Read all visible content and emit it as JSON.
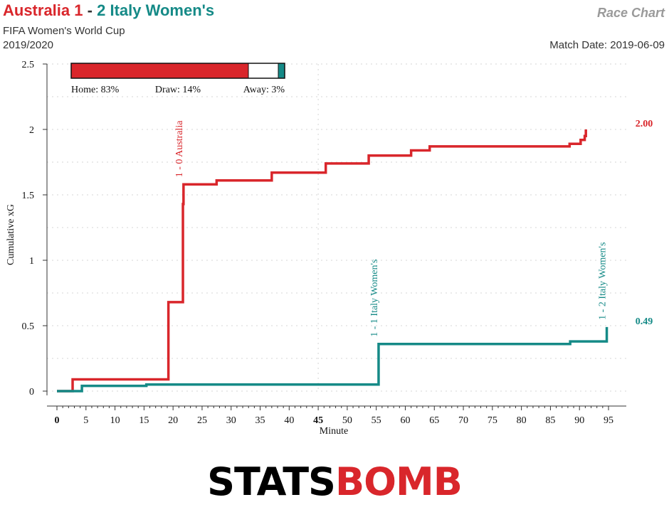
{
  "header": {
    "home_team": "Australia",
    "home_score": "1",
    "separator": "-",
    "away_score": "2",
    "away_team": "Italy Women's",
    "competition": "FIFA Women's World Cup",
    "season": "2019/2020",
    "chart_label": "Race Chart",
    "match_date_label": "Match Date: 2019-06-09"
  },
  "colors": {
    "home": "#d9262b",
    "away": "#158a87"
  },
  "probability": {
    "home": 83,
    "draw": 14,
    "away": 3,
    "home_label": "Home: 83%",
    "draw_label": "Draw: 14%",
    "away_label": "Away: 3%"
  },
  "chart_data": {
    "type": "line",
    "xlabel": "Minute",
    "ylabel": "Cumulative xG",
    "xlim": [
      0,
      95
    ],
    "ylim": [
      0,
      2.5
    ],
    "x_ticks": [
      0,
      5,
      10,
      15,
      20,
      25,
      30,
      35,
      40,
      45,
      50,
      55,
      60,
      65,
      70,
      75,
      80,
      85,
      90,
      95
    ],
    "x_tick_labels": [
      "0",
      "5",
      "10",
      "15",
      "20",
      "25",
      "30",
      "35",
      "40",
      "45",
      "50",
      "55",
      "60",
      "65",
      "70",
      "75",
      "80",
      "85",
      "90",
      "95"
    ],
    "y_ticks": [
      0,
      0.5,
      1,
      1.5,
      2,
      2.5
    ],
    "y_tick_labels": [
      "0",
      "0.5",
      "1",
      "1.5",
      "2",
      "2.5"
    ],
    "grid": true,
    "series": [
      {
        "name": "Australia",
        "final_label": "2.00",
        "steps": [
          [
            0,
            0
          ],
          [
            2.7,
            0.09
          ],
          [
            19.2,
            0.68
          ],
          [
            21.7,
            1.43
          ],
          [
            21.8,
            1.58
          ],
          [
            27.5,
            1.61
          ],
          [
            37,
            1.67
          ],
          [
            46.3,
            1.74
          ],
          [
            53.7,
            1.8
          ],
          [
            61,
            1.84
          ],
          [
            64.2,
            1.87
          ],
          [
            88.3,
            1.89
          ],
          [
            90.2,
            1.92
          ],
          [
            90.9,
            1.95
          ],
          [
            91.1,
            2.0
          ]
        ]
      },
      {
        "name": "Italy Women's",
        "final_label": "0.49",
        "steps": [
          [
            0,
            0
          ],
          [
            4.3,
            0.04
          ],
          [
            14.4,
            0.04
          ],
          [
            15.4,
            0.05
          ],
          [
            55.4,
            0.36
          ],
          [
            88.4,
            0.38
          ],
          [
            94.7,
            0.49
          ]
        ]
      }
    ],
    "annotations": [
      {
        "text": "1 - 0 Australia",
        "minute": 21.8,
        "xg": 1.58,
        "team": "home"
      },
      {
        "text": "1 - 1 Italy Women's",
        "minute": 55.4,
        "xg": 0.36,
        "team": "away"
      },
      {
        "text": "1 - 2 Italy Women's",
        "minute": 94.7,
        "xg": 0.49,
        "team": "away"
      }
    ]
  },
  "branding": {
    "logo_left": "STATS",
    "logo_right": "BOMB"
  }
}
